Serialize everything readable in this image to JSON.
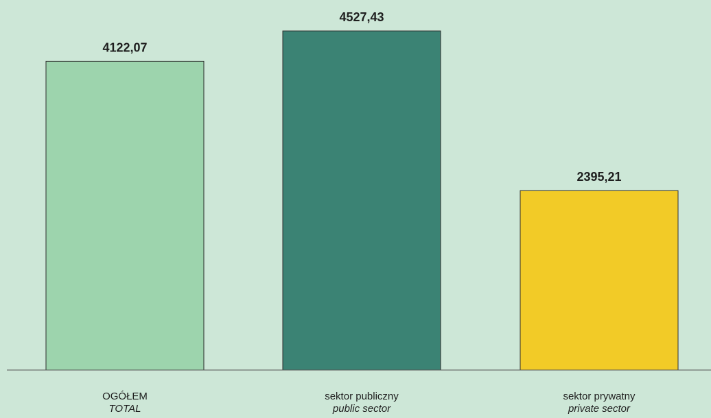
{
  "chart_data": {
    "type": "bar",
    "categories": [
      {
        "label": "OGÓŁEM",
        "sublabel": "TOTAL"
      },
      {
        "label": "sektor publiczny",
        "sublabel": "public sector"
      },
      {
        "label": "sektor prywatny",
        "sublabel": "private sector"
      }
    ],
    "values": [
      4122.07,
      4527.43,
      2395.21
    ],
    "value_labels": [
      "4122,07",
      "4527,43",
      "2395,21"
    ],
    "colors": [
      "#9dd4ad",
      "#3b8374",
      "#f2cb27"
    ],
    "background_color": "#cde7d7",
    "axis_color": "#555555",
    "title": "",
    "xlabel": "",
    "ylabel": "",
    "ylim": [
      0,
      4940
    ],
    "grid": false,
    "legend": "none"
  }
}
